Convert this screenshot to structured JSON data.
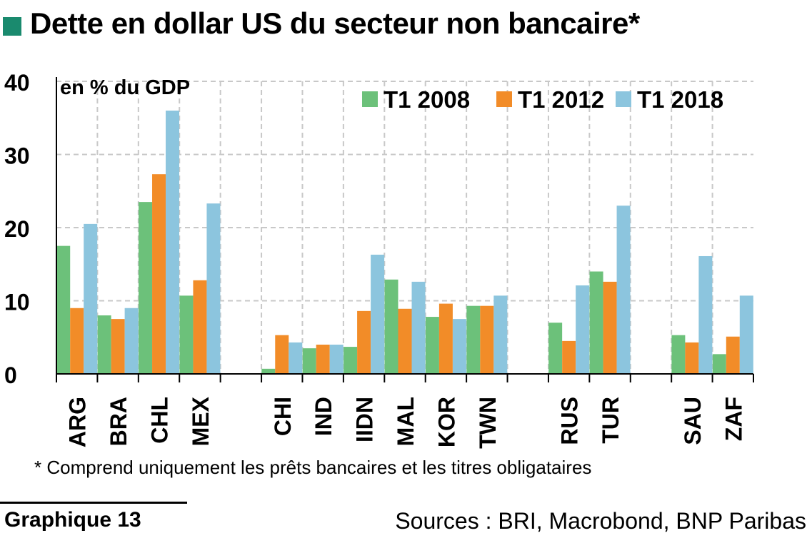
{
  "header": {
    "title": "Dette en dollar US du secteur non bancaire*",
    "square_color": "#1a8a6e"
  },
  "chart_data": {
    "type": "bar",
    "unit_label": "en % du GDP",
    "ylim": [
      0,
      40
    ],
    "yticks": [
      0,
      10,
      20,
      30,
      40
    ],
    "grid": true,
    "legend_position": "top-right",
    "categories": [
      "ARG",
      "BRA",
      "CHL",
      "MEX",
      "",
      "CHI",
      "IND",
      "IIDN",
      "MAL",
      "KOR",
      "TWN",
      "",
      "RUS",
      "TUR",
      "",
      "SAU",
      "ZAF"
    ],
    "series": [
      {
        "name": "T1 2008",
        "color": "#6cc17a",
        "values": [
          17.5,
          8.0,
          23.5,
          10.7,
          null,
          0.7,
          3.5,
          3.7,
          12.9,
          7.8,
          9.3,
          null,
          7.0,
          14.0,
          null,
          5.3,
          2.7
        ]
      },
      {
        "name": "T1 2012",
        "color": "#f28c28",
        "values": [
          9.0,
          7.5,
          27.3,
          12.8,
          null,
          5.3,
          4.0,
          8.6,
          8.9,
          9.6,
          9.3,
          null,
          4.5,
          12.6,
          null,
          4.3,
          5.1
        ]
      },
      {
        "name": "T1 2018",
        "color": "#8cc5de",
        "values": [
          20.5,
          9.0,
          36.0,
          23.3,
          null,
          4.3,
          4.0,
          16.3,
          12.6,
          7.5,
          10.7,
          null,
          12.1,
          23.0,
          null,
          16.1,
          10.7
        ]
      }
    ]
  },
  "footnote": "* Comprend uniquement les prêts bancaires et les titres obligataires",
  "graph_label": "Graphique 13",
  "sources": "Sources : BRI, Macrobond, BNP Paribas"
}
